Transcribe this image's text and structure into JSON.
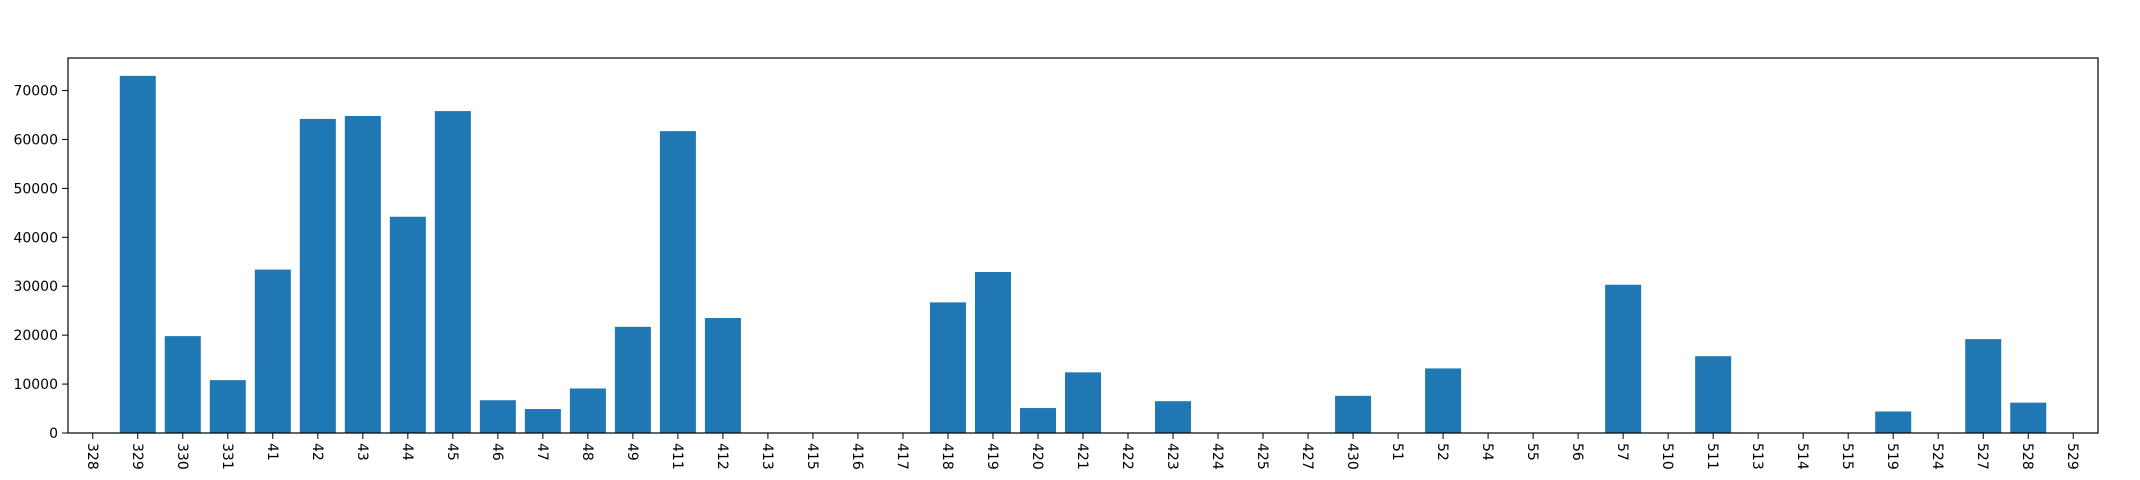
{
  "chart_data": {
    "type": "bar",
    "title": "",
    "xlabel": "",
    "ylabel": "",
    "ylim": [
      0,
      76650
    ],
    "yticks": [
      0,
      10000,
      20000,
      30000,
      40000,
      50000,
      60000,
      70000
    ],
    "ytick_labels": [
      "0",
      "10000",
      "20000",
      "30000",
      "40000",
      "50000",
      "60000",
      "70000"
    ],
    "grid": false,
    "legend": "none",
    "bar_color": "#1f77b4",
    "categories": [
      "328",
      "329",
      "330",
      "331",
      "41",
      "42",
      "43",
      "44",
      "45",
      "46",
      "47",
      "48",
      "49",
      "411",
      "412",
      "413",
      "415",
      "416",
      "417",
      "418",
      "419",
      "420",
      "421",
      "422",
      "423",
      "424",
      "425",
      "427",
      "430",
      "51",
      "52",
      "54",
      "55",
      "56",
      "57",
      "510",
      "511",
      "513",
      "514",
      "515",
      "519",
      "524",
      "527",
      "528",
      "529"
    ],
    "values": [
      0,
      73000,
      19800,
      10800,
      33400,
      64200,
      64800,
      44200,
      65800,
      6700,
      4900,
      9100,
      21700,
      61700,
      23500,
      0,
      0,
      0,
      0,
      26700,
      32900,
      5100,
      12400,
      0,
      6500,
      0,
      0,
      0,
      7600,
      0,
      13200,
      0,
      0,
      0,
      30300,
      0,
      15700,
      0,
      0,
      0,
      4400,
      0,
      19200,
      6200,
      0
    ]
  }
}
